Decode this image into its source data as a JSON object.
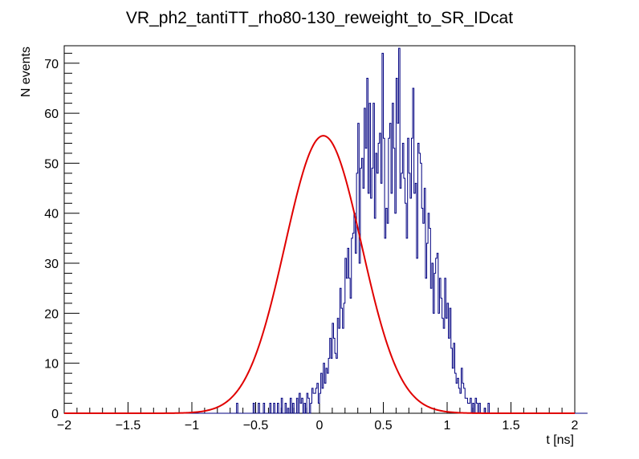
{
  "chart_data": {
    "type": "histogram",
    "title": "VR_ph2_tantiTT_rho80-130_reweight_to_SR_IDcat",
    "xlabel": "t [ns]",
    "ylabel": "N events",
    "xlim": [
      -2,
      2
    ],
    "ylim": [
      0,
      73.5
    ],
    "x_ticks": [
      "−2",
      "−1.5",
      "−1",
      "−0.5",
      "0",
      "0.5",
      "1",
      "1.5",
      "2"
    ],
    "y_ticks": [
      "0",
      "10",
      "20",
      "30",
      "40",
      "50",
      "60",
      "70"
    ],
    "bin_width": 0.01,
    "series": [
      {
        "name": "histogram",
        "color": "#000080",
        "x_start": -2.0,
        "values": [
          0,
          0,
          0,
          0,
          0,
          0,
          0,
          0,
          0,
          0,
          0,
          0,
          0,
          0,
          0,
          0,
          0,
          0,
          0,
          0,
          0,
          0,
          0,
          0,
          0,
          0,
          0,
          0,
          0,
          0,
          0,
          0,
          0,
          0,
          0,
          0,
          0,
          0,
          0,
          0,
          0,
          0,
          0,
          0,
          0,
          0,
          0,
          0,
          0,
          0,
          0,
          0,
          0,
          0,
          0,
          0,
          0,
          0,
          0,
          0,
          0,
          0,
          0,
          0,
          0,
          0,
          0,
          0,
          0,
          0,
          0,
          0,
          0,
          0,
          0,
          0,
          0,
          0,
          0,
          0,
          0,
          0,
          0,
          0,
          0,
          0,
          0,
          0,
          0,
          0,
          0,
          0,
          0,
          0,
          0,
          0,
          0,
          0,
          0,
          0,
          0,
          0,
          0,
          0,
          0,
          0,
          0,
          0,
          0,
          0,
          0,
          0,
          0,
          0,
          0,
          0,
          0,
          0,
          0,
          0,
          0,
          0,
          0,
          0,
          0,
          0,
          0,
          0,
          0,
          0,
          0,
          0,
          0,
          0,
          0,
          2,
          0,
          0,
          0,
          0,
          0,
          0,
          0,
          0,
          0,
          0,
          0,
          0,
          2,
          0,
          0,
          0,
          2,
          0,
          0,
          0,
          2,
          0,
          0,
          0,
          0,
          2,
          0,
          0,
          2,
          0,
          0,
          2,
          0,
          0,
          3,
          0,
          0,
          2,
          0,
          1,
          0,
          3,
          0,
          2,
          0,
          0,
          3,
          0,
          4,
          2,
          3,
          0,
          2,
          0,
          4,
          3,
          0,
          2,
          5,
          4,
          4,
          5,
          6,
          2,
          4,
          8,
          5,
          10,
          6,
          9,
          8,
          11,
          15,
          11,
          18,
          15,
          12,
          11,
          19,
          17,
          25,
          21,
          17,
          22,
          31,
          27,
          33,
          27,
          23,
          35,
          36,
          40,
          32,
          48,
          58,
          30,
          49,
          51,
          45,
          61,
          53,
          67,
          44,
          62,
          43,
          49,
          62,
          39,
          52,
          48,
          54,
          56,
          46,
          72,
          55,
          35,
          41,
          38,
          55,
          58,
          44,
          62,
          53,
          40,
          67,
          58,
          73,
          45,
          48,
          54,
          47,
          42,
          35,
          55,
          48,
          43,
          55,
          65,
          44,
          46,
          31,
          54,
          52,
          50,
          41,
          38,
          45,
          27,
          34,
          40,
          37,
          25,
          30,
          20,
          28,
          31,
          32,
          20,
          27,
          23,
          19,
          17,
          27,
          19,
          22,
          15,
          21,
          13,
          9,
          14,
          8,
          6,
          7,
          5,
          4,
          9,
          6,
          5,
          3,
          3,
          2,
          2,
          3,
          0,
          2,
          0,
          3,
          2,
          0,
          2,
          0,
          0,
          0,
          1,
          0,
          0,
          2,
          0,
          0,
          0,
          0,
          0,
          0,
          0,
          0,
          0,
          0,
          0,
          0,
          0,
          0,
          0,
          0,
          0,
          0,
          0,
          0,
          0,
          0,
          0,
          0,
          0,
          0,
          0,
          0,
          0,
          0,
          0,
          0,
          0,
          0,
          0,
          0,
          0,
          0,
          0,
          0,
          0,
          0,
          0,
          0,
          0,
          0,
          0,
          0,
          0,
          0,
          0,
          0,
          0,
          0,
          0,
          0,
          0,
          0,
          0,
          0,
          0,
          0,
          0,
          0,
          0,
          0,
          0,
          0,
          0,
          0,
          0,
          0,
          0,
          0,
          0,
          0,
          0
        ]
      },
      {
        "name": "gaussian fit",
        "color": "#e00000",
        "function": "gaussian",
        "amplitude": 55.5,
        "mean": 0.03,
        "sigma": 0.3
      }
    ]
  }
}
